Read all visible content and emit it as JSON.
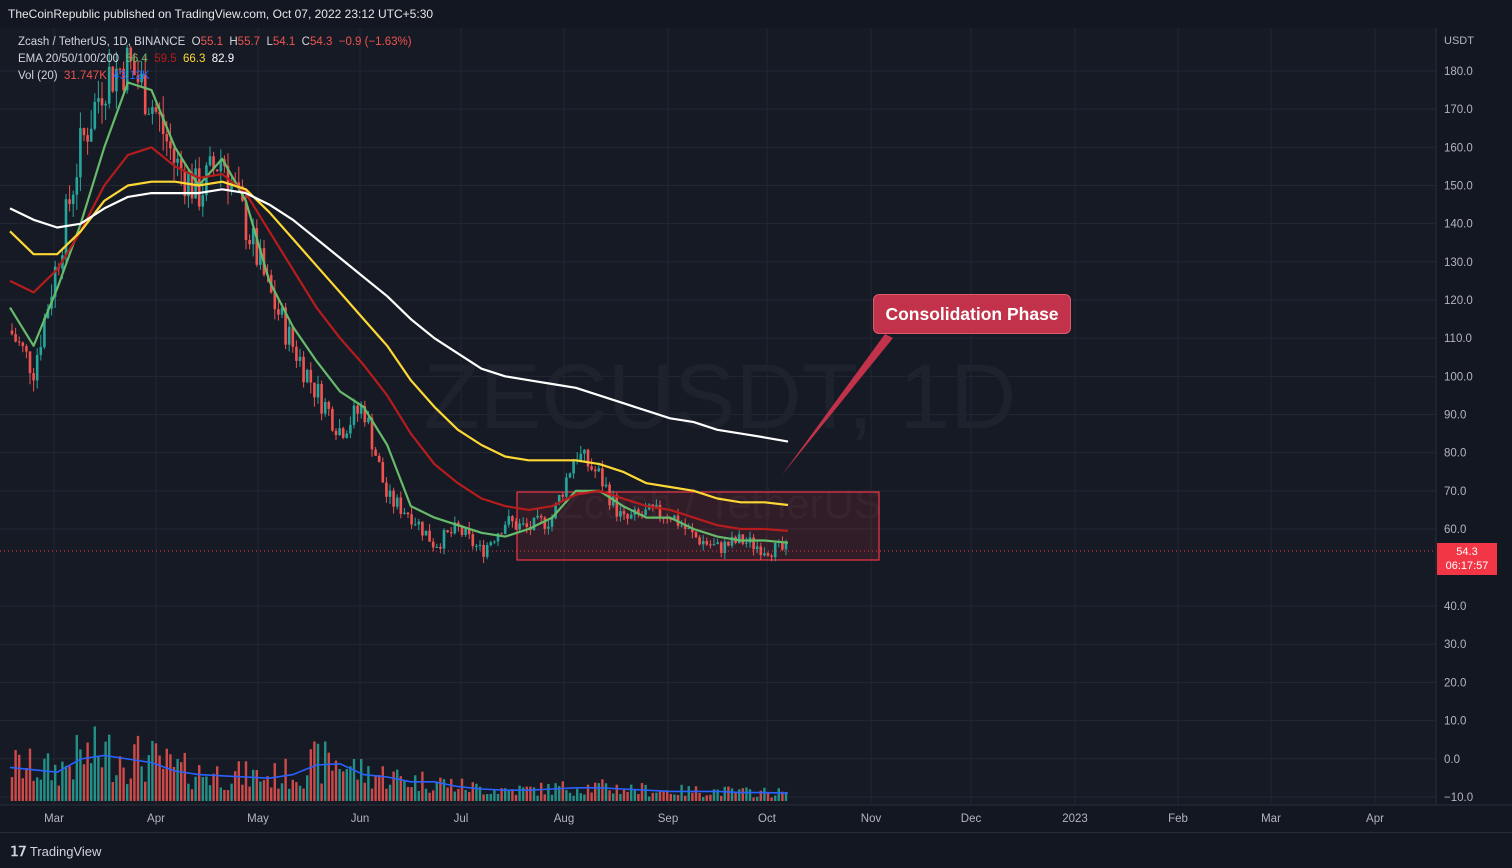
{
  "header": {
    "publisher": "TheCoinRepublic published on TradingView.com, Oct 07, 2022 23:12 UTC+5:30"
  },
  "legend": {
    "symbol": "Zcash / TetherUS, 1D, BINANCE",
    "open_label": "O",
    "open": "55.1",
    "high_label": "H",
    "high": "55.7",
    "low_label": "L",
    "low": "54.1",
    "close_label": "C",
    "close": "54.3",
    "change": "−0.9 (−1.63%)",
    "ema_label": "EMA 20/50/100/200",
    "ema20": "56.4",
    "ema50": "59.5",
    "ema100": "66.3",
    "ema200": "82.9",
    "vol_label": "Vol (20)",
    "vol": "31.747K",
    "vol_ma": "43.12K"
  },
  "watermark": {
    "line1": "ZECUSDT, 1D",
    "line2": "Zcash / TetherUS"
  },
  "annotation": {
    "label": "Consolidation Phase"
  },
  "price_tag": {
    "price": "54.3",
    "countdown": "06:17:57"
  },
  "footer": {
    "brand": "TradingView"
  },
  "colors": {
    "up": "#26a69a",
    "down": "#ef5350",
    "ema20": "#66bb6a",
    "ema50": "#b71c1c",
    "ema100": "#fdd835",
    "ema200": "#ffffff",
    "vol_ma": "#2962ff",
    "annotation": "#c2334b"
  },
  "chart_data": {
    "type": "line",
    "y_unit": "USDT",
    "y_ticks": [
      "180.0",
      "170.0",
      "160.0",
      "150.0",
      "140.0",
      "130.0",
      "120.0",
      "110.0",
      "100.0",
      "90.0",
      "80.0",
      "70.0",
      "60.0",
      "40.0",
      "30.0",
      "20.0",
      "10.0",
      "0.0",
      "−10.0"
    ],
    "x_ticks": [
      "Mar",
      "Apr",
      "May",
      "Jun",
      "Jul",
      "Aug",
      "Sep",
      "Oct",
      "Nov",
      "Dec",
      "2023",
      "Feb",
      "Mar",
      "Apr"
    ],
    "last_price": 54.3,
    "consolidation_range": {
      "from": "Jul 18",
      "to": "Nov 01",
      "low": 52,
      "high": 69.5
    },
    "x_dates": [
      "Feb 22",
      "Mar 01",
      "Mar 08",
      "Mar 15",
      "Mar 22",
      "Mar 29",
      "Apr 05",
      "Apr 12",
      "Apr 19",
      "Apr 26",
      "May 03",
      "May 10",
      "May 17",
      "May 24",
      "May 31",
      "Jun 07",
      "Jun 14",
      "Jun 21",
      "Jun 28",
      "Jul 05",
      "Jul 12",
      "Jul 19",
      "Jul 26",
      "Aug 02",
      "Aug 09",
      "Aug 16",
      "Aug 23",
      "Aug 30",
      "Sep 06",
      "Sep 13",
      "Sep 20",
      "Sep 27",
      "Oct 04",
      "Oct 07"
    ],
    "series": [
      {
        "name": "EMA 20",
        "values": [
          118,
          108,
          123,
          140,
          160,
          177,
          175,
          160,
          150,
          157,
          146,
          125,
          113,
          104,
          96,
          92,
          82,
          66,
          63,
          61,
          59,
          58,
          60,
          63,
          70,
          70,
          66,
          63,
          63,
          60,
          58,
          57,
          57,
          56.4
        ]
      },
      {
        "name": "EMA 50",
        "values": [
          125,
          122,
          128,
          138,
          150,
          158,
          160,
          155,
          152,
          153,
          148,
          138,
          128,
          118,
          110,
          103,
          95,
          85,
          77,
          72,
          68,
          66,
          65,
          66,
          69,
          70,
          68,
          66,
          65,
          63,
          61,
          60,
          60,
          59.5
        ]
      },
      {
        "name": "EMA 100",
        "values": [
          138,
          132,
          132,
          138,
          146,
          150,
          151,
          151,
          150,
          151,
          149,
          143,
          136,
          129,
          122,
          115,
          108,
          99,
          92,
          86,
          82,
          79,
          78,
          78,
          78,
          77,
          75,
          72,
          71,
          70,
          68,
          67,
          67,
          66.3
        ]
      },
      {
        "name": "EMA 200",
        "values": [
          144,
          141,
          139,
          140,
          144,
          147,
          148,
          148,
          148,
          149,
          148,
          145,
          141,
          136,
          131,
          126,
          121,
          115,
          110,
          106,
          102,
          100,
          99,
          98,
          97,
          95,
          93,
          91,
          89,
          88,
          86,
          85,
          84,
          82.9
        ]
      },
      {
        "name": "Close",
        "values": [
          112,
          102,
          130,
          160,
          178,
          182,
          172,
          156,
          148,
          158,
          140,
          122,
          108,
          96,
          86,
          92,
          68,
          64,
          56,
          60,
          54,
          62,
          60,
          63,
          80,
          74,
          62,
          64,
          64,
          58,
          55,
          57,
          55,
          54.3
        ]
      },
      {
        "name": "Vol (20)",
        "values": [
          28,
          26,
          24,
          35,
          38,
          35,
          32,
          25,
          22,
          21,
          20,
          19,
          22,
          30,
          31,
          22,
          20,
          16,
          16,
          12,
          10,
          9,
          9,
          10,
          11,
          11,
          10,
          9,
          8,
          8,
          8,
          7,
          7,
          6.5
        ]
      }
    ]
  }
}
